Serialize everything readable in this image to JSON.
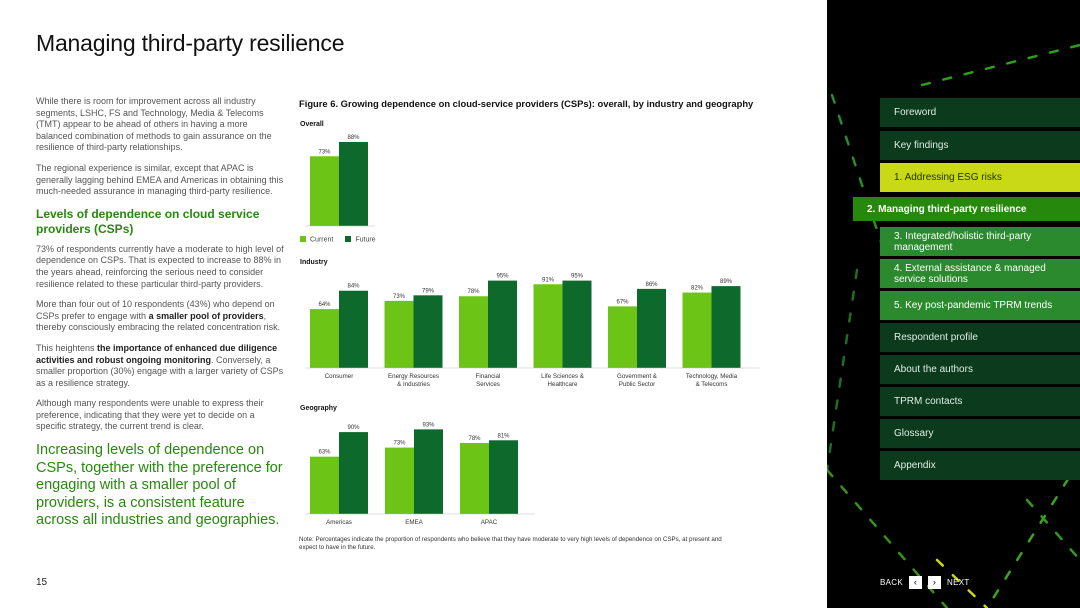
{
  "page": {
    "title": "Managing third-party resilience",
    "number": "15"
  },
  "body": {
    "para1": "While there is room for improvement across all industry segments, LSHC, FS and Technology, Media & Telecoms (TMT) appear to be ahead of others in having a more balanced combination of methods to gain assurance on the resilience of third-party relationships.",
    "para2": "The regional experience is similar, except that APAC is generally lagging behind EMEA and Americas in obtaining this much-needed assurance in managing third-party resilience.",
    "heading": "Levels of dependence on cloud service providers (CSPs)",
    "para3": "73% of respondents currently have a moderate to high level of dependence on CSPs. That is expected to increase to 88% in the years ahead, reinforcing the serious need to consider resilience related to these particular third-party providers.",
    "para4_a": "More than four out of 10 respondents (43%) who depend on CSPs prefer to engage with ",
    "para4_b": "a smaller pool of providers",
    "para4_c": ", thereby consciously embracing the related concentration risk.",
    "para5_a": "This heightens ",
    "para5_b": "the importance of enhanced due diligence activities and robust ongoing monitoring",
    "para5_c": ". Conversely, a smaller proportion (30%) engage with a larger variety of CSPs as a resilience strategy.",
    "para6": "Although many respondents were unable to express their preference, indicating that they were yet to decide on a specific strategy, the current trend is clear.",
    "quote": "Increasing levels of dependence on CSPs, together with the preference for engaging with a smaller pool of providers, is a consistent feature across all industries and geographies."
  },
  "figure": {
    "title": "Figure 6. Growing dependence on cloud-service providers (CSPs): overall, by industry and geography",
    "note": "Note: Percentages indicate the proportion of respondents who believe that they have moderate to very high levels of dependence on CSPs, at present and expect to have in the future."
  },
  "colors": {
    "current": "#6cc417",
    "future": "#0e6a2c",
    "accent": "#26890d",
    "highlight": "#c9d817"
  },
  "chart_data": [
    {
      "type": "bar",
      "title": "Overall",
      "categories": [
        ""
      ],
      "ylim": [
        0,
        100
      ],
      "series": [
        {
          "name": "Current",
          "values": [
            73
          ]
        },
        {
          "name": "Future",
          "values": [
            88
          ]
        }
      ],
      "labels": {
        "Current": [
          "73%"
        ],
        "Future": [
          "88%"
        ]
      }
    },
    {
      "type": "bar",
      "title": "Industry",
      "categories": [
        [
          "Consumer"
        ],
        [
          "Energy Resources",
          "& Industries"
        ],
        [
          "Financial",
          "Services"
        ],
        [
          "Life Sciences &",
          "Healthcare"
        ],
        [
          "Government &",
          "Public Sector"
        ],
        [
          "Technology, Media",
          "& Telecoms"
        ]
      ],
      "ylim": [
        0,
        100
      ],
      "series": [
        {
          "name": "Current",
          "values": [
            64,
            73,
            78,
            91,
            67,
            82
          ]
        },
        {
          "name": "Future",
          "values": [
            84,
            79,
            95,
            95,
            86,
            89
          ]
        }
      ],
      "labels": {
        "Current": [
          "64%",
          "73%",
          "78%",
          "91%",
          "67%",
          "82%"
        ],
        "Future": [
          "84%",
          "79%",
          "95%",
          "95%",
          "86%",
          "89%"
        ]
      }
    },
    {
      "type": "bar",
      "title": "Geography",
      "categories": [
        [
          "Americas"
        ],
        [
          "EMEA"
        ],
        [
          "APAC"
        ]
      ],
      "ylim": [
        0,
        100
      ],
      "series": [
        {
          "name": "Current",
          "values": [
            63,
            73,
            78
          ]
        },
        {
          "name": "Future",
          "values": [
            90,
            93,
            81
          ]
        }
      ],
      "labels": {
        "Current": [
          "63%",
          "73%",
          "78%"
        ],
        "Future": [
          "90%",
          "93%",
          "81%"
        ]
      }
    }
  ],
  "legend": {
    "current": "Current",
    "future": "Future"
  },
  "nav": {
    "items": [
      {
        "label": "Foreword",
        "style": "plain"
      },
      {
        "label": "Key findings",
        "style": "plain"
      },
      {
        "label": "1.  Addressing ESG risks",
        "style": "highlight"
      },
      {
        "label": "2.  Managing third-party resilience",
        "style": "active"
      },
      {
        "label": "3.  Integrated/holistic third-party management",
        "style": "sub"
      },
      {
        "label": "4.  External assistance & managed service solutions",
        "style": "sub"
      },
      {
        "label": "5.  Key post-pandemic TPRM trends",
        "style": "sub"
      },
      {
        "label": "Respondent profile",
        "style": "plain"
      },
      {
        "label": "About the authors",
        "style": "plain"
      },
      {
        "label": "TPRM contacts",
        "style": "plain"
      },
      {
        "label": "Glossary",
        "style": "plain"
      },
      {
        "label": "Appendix",
        "style": "plain"
      }
    ],
    "back": "BACK",
    "next": "NEXT"
  }
}
